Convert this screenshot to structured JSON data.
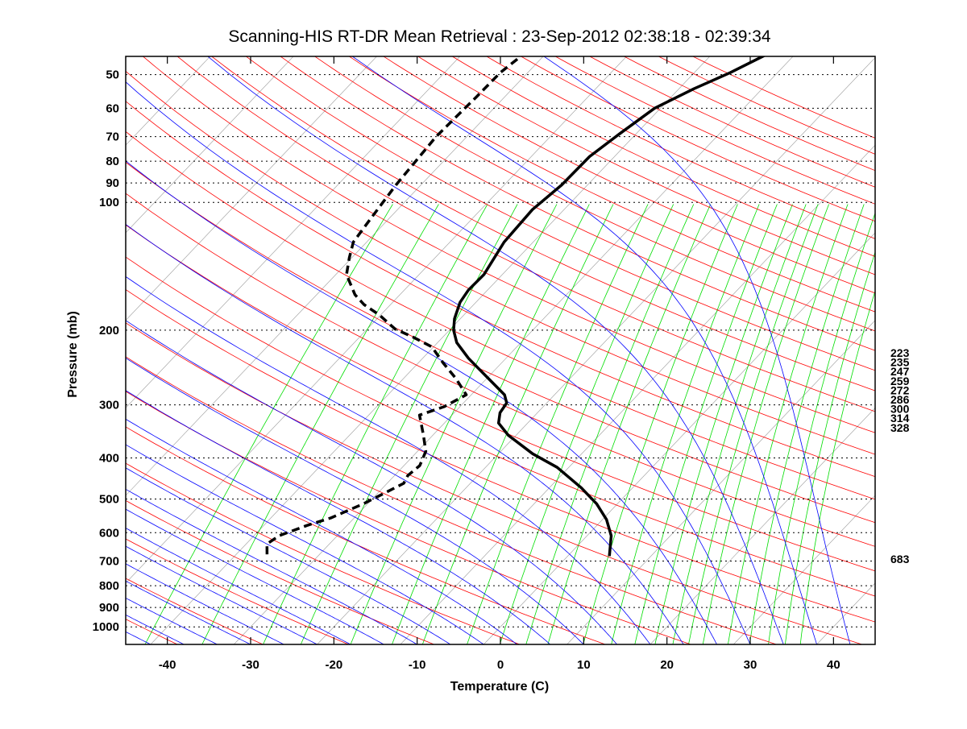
{
  "chart_data": {
    "type": "line",
    "subtype": "skew-T log-p diagram",
    "title": "Scanning-HIS RT-DR Mean Retrieval : 23-Sep-2012 02:38:18 - 02:39:34",
    "xlabel": "Temperature (C)",
    "ylabel": "Pressure (mb)",
    "xlim": [
      -45,
      45
    ],
    "ylim_pressure": [
      1100,
      45.3
    ],
    "x_ticks": [
      -40,
      -30,
      -20,
      -10,
      0,
      10,
      20,
      30,
      40
    ],
    "x_tick_labels": [
      "-40",
      "-30",
      "-20",
      "-10",
      "0",
      "10",
      "20",
      "30",
      "40"
    ],
    "y_ticks": [
      50,
      60,
      70,
      80,
      90,
      100,
      200,
      300,
      400,
      500,
      600,
      700,
      800,
      900,
      1000
    ],
    "y_tick_labels": [
      "50",
      "60",
      "70",
      "80",
      "90",
      "100",
      "200",
      "300",
      "400",
      "500",
      "600",
      "700",
      "800",
      "900",
      "1000"
    ],
    "grid": "dotted horizontal at pressure ticks",
    "right_labels": [
      "223",
      "235",
      "247",
      "259",
      "272",
      "286",
      "300",
      "314",
      "328"
    ],
    "right_label_bottom": "683",
    "colors": {
      "dry_adiabat": "#ff0000",
      "moist_adiabat": "#0000ff",
      "mixing_ratio": "#00dd00",
      "isotherm": "#999999",
      "profile": "#000000"
    },
    "series": [
      {
        "name": "Temperature",
        "style": "solid",
        "pressure": [
          681,
          610,
          559,
          513,
          470,
          421,
          391,
          354,
          331,
          313,
          297,
          284,
          260,
          233,
          214,
          200,
          188,
          172,
          161,
          148,
          124,
          104,
          91,
          78,
          69,
          60,
          54,
          49.5,
          45
        ],
        "temperature": [
          5.0,
          2.9,
          0.5,
          -2.5,
          -6.2,
          -11.4,
          -15.9,
          -20.9,
          -23.5,
          -24.5,
          -24.8,
          -26.0,
          -29.8,
          -34.5,
          -37.7,
          -39.5,
          -40.7,
          -41.9,
          -42.3,
          -42.2,
          -43.5,
          -43.8,
          -43.1,
          -43.0,
          -42.0,
          -40.7,
          -38.2,
          -35.7,
          -33.5
        ]
      },
      {
        "name": "Dewpoint",
        "style": "dashed",
        "pressure": [
          675,
          638,
          610,
          577,
          554,
          513,
          480,
          459,
          440,
          417,
          386,
          354,
          317,
          303,
          284,
          260,
          239,
          219,
          207,
          199,
          184,
          174,
          165,
          148,
          135,
          124,
          109,
          91,
          70,
          56.4,
          49.5,
          45.3
        ],
        "temperature": [
          -36.3,
          -37.5,
          -37.0,
          -34.8,
          -32.8,
          -30.5,
          -29.0,
          -28.0,
          -28.4,
          -28.1,
          -29.0,
          -31.1,
          -33.9,
          -31.9,
          -30.6,
          -33.7,
          -37.0,
          -40.2,
          -43.8,
          -46.6,
          -50.2,
          -53.2,
          -55.4,
          -58.7,
          -60.3,
          -61.6,
          -62.2,
          -63.0,
          -63.7,
          -63.4,
          -63.3,
          -62.7
        ]
      }
    ]
  }
}
